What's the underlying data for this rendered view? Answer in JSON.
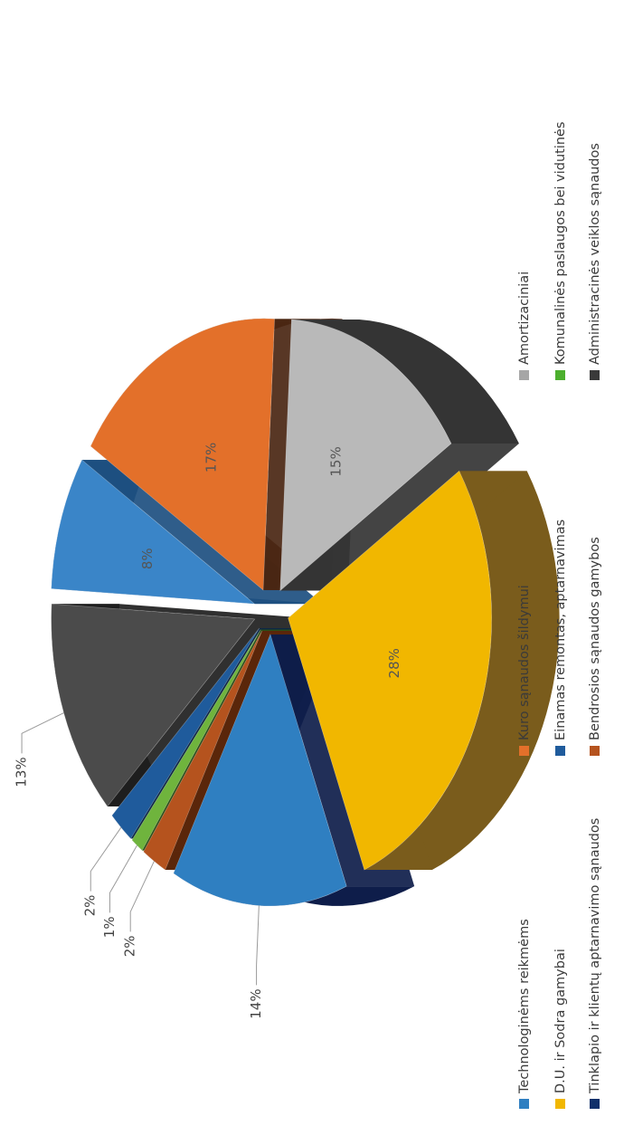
{
  "chart_data": {
    "type": "pie",
    "style": "3d-exploded",
    "orientation": "rotated-90-counterclockwise",
    "title": "",
    "slices": [
      {
        "label": "Technologinėms reikmėms",
        "value": 14,
        "value_label": "14%",
        "color": "#2f7fc1",
        "side_color": "#0e1d4a",
        "label_position": "outside"
      },
      {
        "label": "Bendrosios sąnaudos gamybos",
        "value": 2,
        "value_label": "2%",
        "color": "#b5531e",
        "side_color": "#5a260b",
        "label_position": "outside"
      },
      {
        "label": "Komunalinės paslaugos bei vidutinės",
        "value": 1,
        "value_label": "1%",
        "color": "#6fb43d",
        "side_color": "#2c4f18",
        "label_position": "outside"
      },
      {
        "label": "Einamas remontas, aptarnavimas",
        "value": 2,
        "value_label": "2%",
        "color": "#1f5b9c",
        "side_color": "#0d2747",
        "label_position": "outside"
      },
      {
        "label": "Administracinės veiklos sąnaudos",
        "value": 13,
        "value_label": "13%",
        "color": "#4b4b4b",
        "side_color": "#1e1e1e",
        "label_position": "outside"
      },
      {
        "label": "Tinklapio ir klientų aptarnavimo sąnaudos",
        "value": 8,
        "value_label": "8%",
        "color": "#3a85c8",
        "side_color": "#1d4f80",
        "label_position": "inside"
      },
      {
        "label": "Kuro sąnaudos šildymui",
        "value": 17,
        "value_label": "17%",
        "color": "#e3702a",
        "side_color": "#4a2612",
        "label_position": "inside"
      },
      {
        "label": "Amortizaciniai",
        "value": 15,
        "value_label": "15%",
        "color": "#b9b9b9",
        "side_color": "#343434",
        "label_position": "inside"
      },
      {
        "label": "D.U. ir Sodra gamybai",
        "value": 28,
        "value_label": "28%",
        "color": "#f1b700",
        "side_color": "#7a5c1c",
        "label_position": "inside"
      }
    ],
    "legend": {
      "placement": "bottom",
      "items": [
        {
          "label": "Technologinėms reikmėms",
          "color": "#2f7fc1"
        },
        {
          "label": "Kuro sąnaudos šildymui",
          "color": "#e3702a"
        },
        {
          "label": "Amortizaciniai",
          "color": "#a6a6a6"
        },
        {
          "label": "D.U. ir Sodra gamybai",
          "color": "#f1b700"
        },
        {
          "label": "Einamas remontas, aptarnavimas",
          "color": "#1f5b9c"
        },
        {
          "label": "Komunalinės paslaugos bei vidutinės",
          "color": "#4caf2e"
        },
        {
          "label": "Tinklapio ir klientų aptarnavimo sąnaudos",
          "color": "#10306a"
        },
        {
          "label": "Bendrosios sąnaudos gamybos",
          "color": "#b5531e"
        },
        {
          "label": "Administracinės veiklos sąnaudos",
          "color": "#3a3a3a"
        }
      ]
    }
  }
}
